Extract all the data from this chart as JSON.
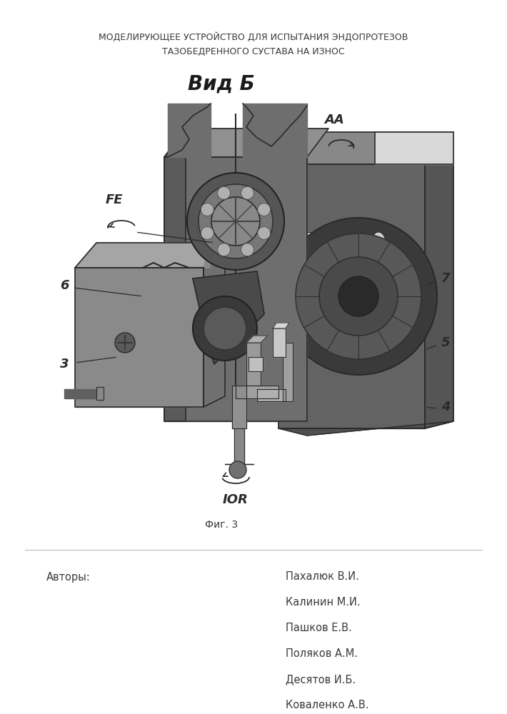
{
  "title_line1": "МОДЕЛИРУЮЩЕЕ УСТРОЙСТВО ДЛЯ ИСПЫТАНИЯ ЭНДОПРОТЕЗОВ",
  "title_line2": "ТАЗОБЕДРЕННОГО СУСТАВА НА ИЗНОС",
  "view_label": "Вид Б",
  "fig_label": "Фиг. 3",
  "authors_label": "Авторы:",
  "authors": [
    "Пахалюк В.И.",
    "Калинин М.И.",
    "Пашков Е.В.",
    "Поляков А.М.",
    "Десятов И.Б.",
    "Коваленко А.В."
  ],
  "bg_color": "#ffffff",
  "text_color": "#3a3a3a",
  "title_fontsize": 9.0,
  "view_fontsize": 20,
  "fig_fontsize": 10,
  "authors_fontsize": 10.5
}
